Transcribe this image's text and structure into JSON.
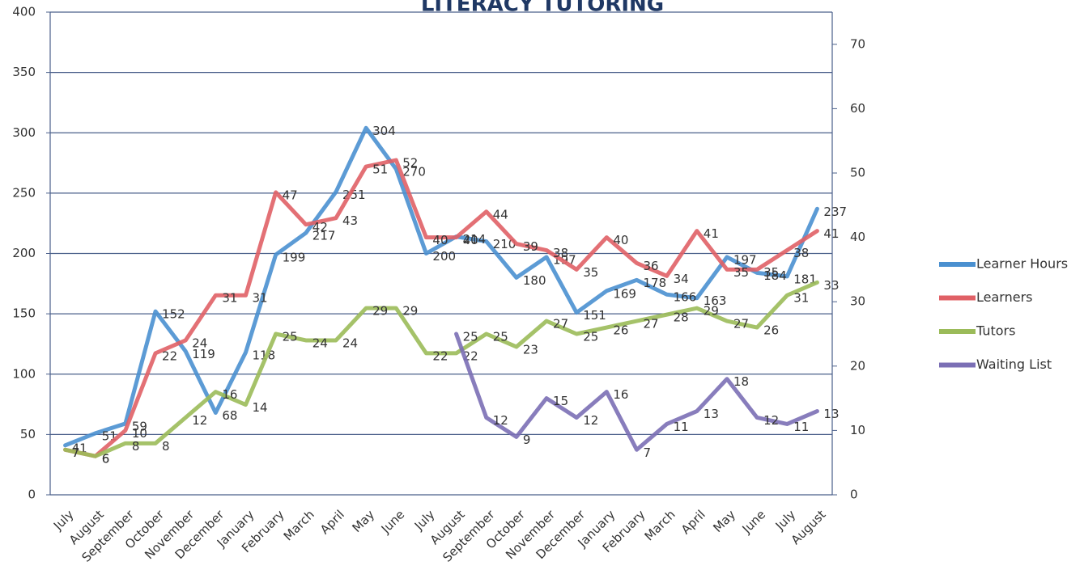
{
  "chart_data": {
    "type": "line",
    "title": "LITERACY TUTORING",
    "categories": [
      "July",
      "August",
      "September",
      "October",
      "November",
      "December",
      "January",
      "February",
      "March",
      "April",
      "May",
      "June",
      "July",
      "August",
      "September",
      "October",
      "November",
      "December",
      "January",
      "February",
      "March",
      "April",
      "May",
      "June",
      "July",
      "August"
    ],
    "series": [
      {
        "name": "Learner Hours",
        "color": "#4a90d0",
        "axis": "y",
        "values": [
          41,
          51,
          59,
          152,
          119,
          68,
          118,
          199,
          217,
          251,
          304,
          270,
          200,
          214,
          210,
          180,
          197,
          151,
          169,
          178,
          166,
          163,
          197,
          184,
          181,
          237
        ]
      },
      {
        "name": "Learners",
        "color": "#e06066",
        "axis": "y2",
        "values": [
          7,
          6,
          10,
          22,
          24,
          31,
          31,
          47,
          42,
          43,
          51,
          52,
          40,
          40,
          44,
          39,
          38,
          35,
          40,
          36,
          34,
          41,
          35,
          35,
          38,
          41
        ]
      },
      {
        "name": "Tutors",
        "color": "#9bbb59",
        "axis": "y2",
        "values": [
          7,
          6,
          8,
          8,
          12,
          16,
          14,
          25,
          24,
          24,
          29,
          29,
          22,
          22,
          25,
          23,
          27,
          25,
          26,
          27,
          28,
          29,
          27,
          26,
          31,
          33
        ]
      },
      {
        "name": "Waiting List",
        "color": "#7b6fb5",
        "axis": "y2",
        "values": [
          null,
          null,
          null,
          null,
          null,
          null,
          null,
          null,
          null,
          null,
          null,
          null,
          null,
          25,
          12,
          9,
          15,
          12,
          16,
          7,
          11,
          13,
          18,
          12,
          11,
          13
        ]
      }
    ],
    "ylim": [
      0,
      400
    ],
    "yticks": [
      0,
      50,
      100,
      150,
      200,
      250,
      300,
      350,
      400
    ],
    "y2lim": [
      0,
      75
    ],
    "y2ticks": [
      0,
      10,
      20,
      30,
      40,
      50,
      60,
      70
    ],
    "grid": true,
    "legend": "right"
  }
}
